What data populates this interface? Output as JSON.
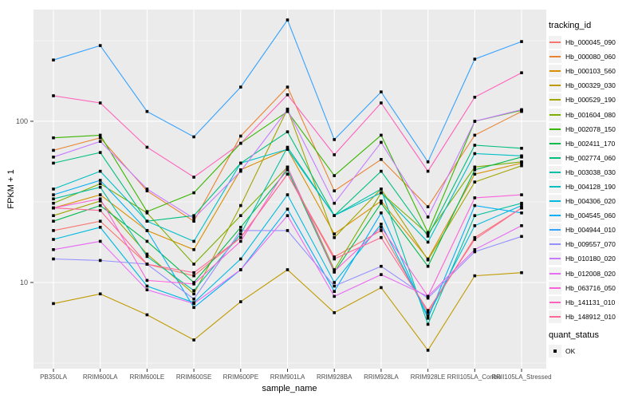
{
  "legend": {
    "tracking_title": "tracking_id",
    "quant_title": "quant_status",
    "quant_label": "OK"
  },
  "colors": {
    "panel_bg": "#EBEBEB",
    "grid": "#FFFFFF",
    "tick_text": "#4D4D4D",
    "axis_text": "#000000",
    "point": "#000000",
    "legend_key_bg": "#F2F2F2"
  },
  "chart_data": {
    "type": "line",
    "title": "",
    "xlabel": "sample_name",
    "ylabel": "FPKM + 1",
    "y_scale": "log10",
    "y_domain": [
      2.92,
      493
    ],
    "y_major_ticks": [
      {
        "value": 100,
        "label": "100"
      },
      {
        "value": 10,
        "label": "10"
      }
    ],
    "y_minor_ticks": [
      3.162,
      31.62,
      316.2
    ],
    "grid": true,
    "legend_position": "right",
    "point_shape": "square",
    "categories": [
      "PB350LA",
      "RRIM600LA",
      "RRIM600LE",
      "RRIM600SE",
      "RRIM600PE",
      "RRIM901LA",
      "RRIM928BA",
      "RRIM928LA",
      "RRIM928LE",
      "RRII105LA_Control",
      "RRII105LA_Stressed"
    ],
    "series": [
      {
        "name": "Hb_000045_090",
        "color": "#F8766D",
        "quant_status": "OK",
        "values": [
          21,
          24,
          13,
          11,
          19,
          47,
          14.4,
          21,
          6.5,
          19,
          29
        ]
      },
      {
        "name": "Hb_000080_060",
        "color": "#EA8331",
        "quant_status": "OK",
        "values": [
          66,
          79,
          37,
          24,
          81,
          163,
          37,
          58,
          29.5,
          82,
          115
        ]
      },
      {
        "name": "Hb_000103_560",
        "color": "#D89000",
        "quant_status": "OK",
        "values": [
          29,
          35,
          21,
          16,
          50,
          67,
          20,
          32,
          14,
          47,
          55
        ]
      },
      {
        "name": "Hb_000329_030",
        "color": "#C09B00",
        "quant_status": "OK",
        "values": [
          7.4,
          8.5,
          6.3,
          4.4,
          7.6,
          12,
          6.5,
          9.3,
          3.8,
          11,
          11.5
        ]
      },
      {
        "name": "Hb_000529_190",
        "color": "#A3A500",
        "quant_status": "OK",
        "values": [
          26,
          32,
          15,
          8.5,
          30,
          119,
          19,
          38,
          13.8,
          42,
          53
        ]
      },
      {
        "name": "Hb_001604_080",
        "color": "#7CAE00",
        "quant_status": "OK",
        "values": [
          31,
          41,
          27,
          13,
          26,
          52,
          12,
          36,
          20,
          52,
          56
        ]
      },
      {
        "name": "Hb_002078_150",
        "color": "#39B600",
        "quant_status": "OK",
        "values": [
          79,
          82,
          27.5,
          36,
          73,
          115,
          46,
          82,
          20.4,
          100,
          117
        ]
      },
      {
        "name": "Hb_002411_170",
        "color": "#00BB4E",
        "quant_status": "OK",
        "values": [
          24,
          30,
          18,
          10,
          22,
          50,
          11.6,
          31,
          12.6,
          50,
          60
        ]
      },
      {
        "name": "Hb_002774_060",
        "color": "#00BF7D",
        "quant_status": "OK",
        "values": [
          55,
          64,
          24,
          26,
          55,
          86,
          26,
          49,
          19.4,
          71,
          68
        ]
      },
      {
        "name": "Hb_003038_030",
        "color": "#00C1A3",
        "quant_status": "OK",
        "values": [
          33,
          39,
          14.5,
          8.9,
          20,
          69,
          26,
          38,
          5.5,
          26,
          31
        ]
      },
      {
        "name": "Hb_004128_190",
        "color": "#00BFC4",
        "quant_status": "OK",
        "values": [
          38,
          49,
          24,
          18,
          55,
          67,
          26,
          36,
          17.8,
          63,
          61
        ]
      },
      {
        "name": "Hb_004306_020",
        "color": "#00BAE0",
        "quant_status": "OK",
        "values": [
          18.5,
          22,
          9.5,
          7.5,
          14,
          35,
          10,
          23,
          6.2,
          22.5,
          30
        ]
      },
      {
        "name": "Hb_004545_060",
        "color": "#00B0F6",
        "quant_status": "OK",
        "values": [
          35,
          43,
          21,
          7,
          12,
          28.5,
          8.8,
          27,
          6,
          30,
          27
        ]
      },
      {
        "name": "Hb_004944_010",
        "color": "#35A2FF",
        "quant_status": "OK",
        "values": [
          240,
          295,
          115,
          80,
          163,
          425,
          77,
          152,
          56,
          243,
          312
        ]
      },
      {
        "name": "Hb_009557_070",
        "color": "#9590FF",
        "quant_status": "OK",
        "values": [
          14,
          13.7,
          13,
          7.9,
          21,
          21,
          9.5,
          12.6,
          8,
          15.5,
          19.3
        ]
      },
      {
        "name": "Hb_010180_020",
        "color": "#C77CFF",
        "quant_status": "OK",
        "values": [
          60,
          75,
          38,
          25,
          49,
          118,
          31,
          74,
          25.5,
          100,
          118
        ]
      },
      {
        "name": "Hb_012008_020",
        "color": "#E76BF3",
        "quant_status": "OK",
        "values": [
          16,
          18,
          9,
          7.4,
          12,
          26,
          8.2,
          11.2,
          8.2,
          16,
          22.5
        ]
      },
      {
        "name": "Hb_063716_050",
        "color": "#FA62DB",
        "quant_status": "OK",
        "values": [
          29,
          33,
          10.3,
          9.8,
          18,
          52,
          11.7,
          22,
          8.2,
          33.5,
          35
        ]
      },
      {
        "name": "Hb_141131_010",
        "color": "#FF62BC",
        "quant_status": "OK",
        "values": [
          144,
          130,
          69,
          45,
          73,
          146,
          62,
          130,
          49,
          141,
          200
        ]
      },
      {
        "name": "Hb_148912_010",
        "color": "#FF6A98",
        "quant_status": "OK",
        "values": [
          29,
          28,
          13,
          11.5,
          19,
          47,
          14,
          19,
          6.7,
          18.5,
          29
        ]
      }
    ]
  }
}
